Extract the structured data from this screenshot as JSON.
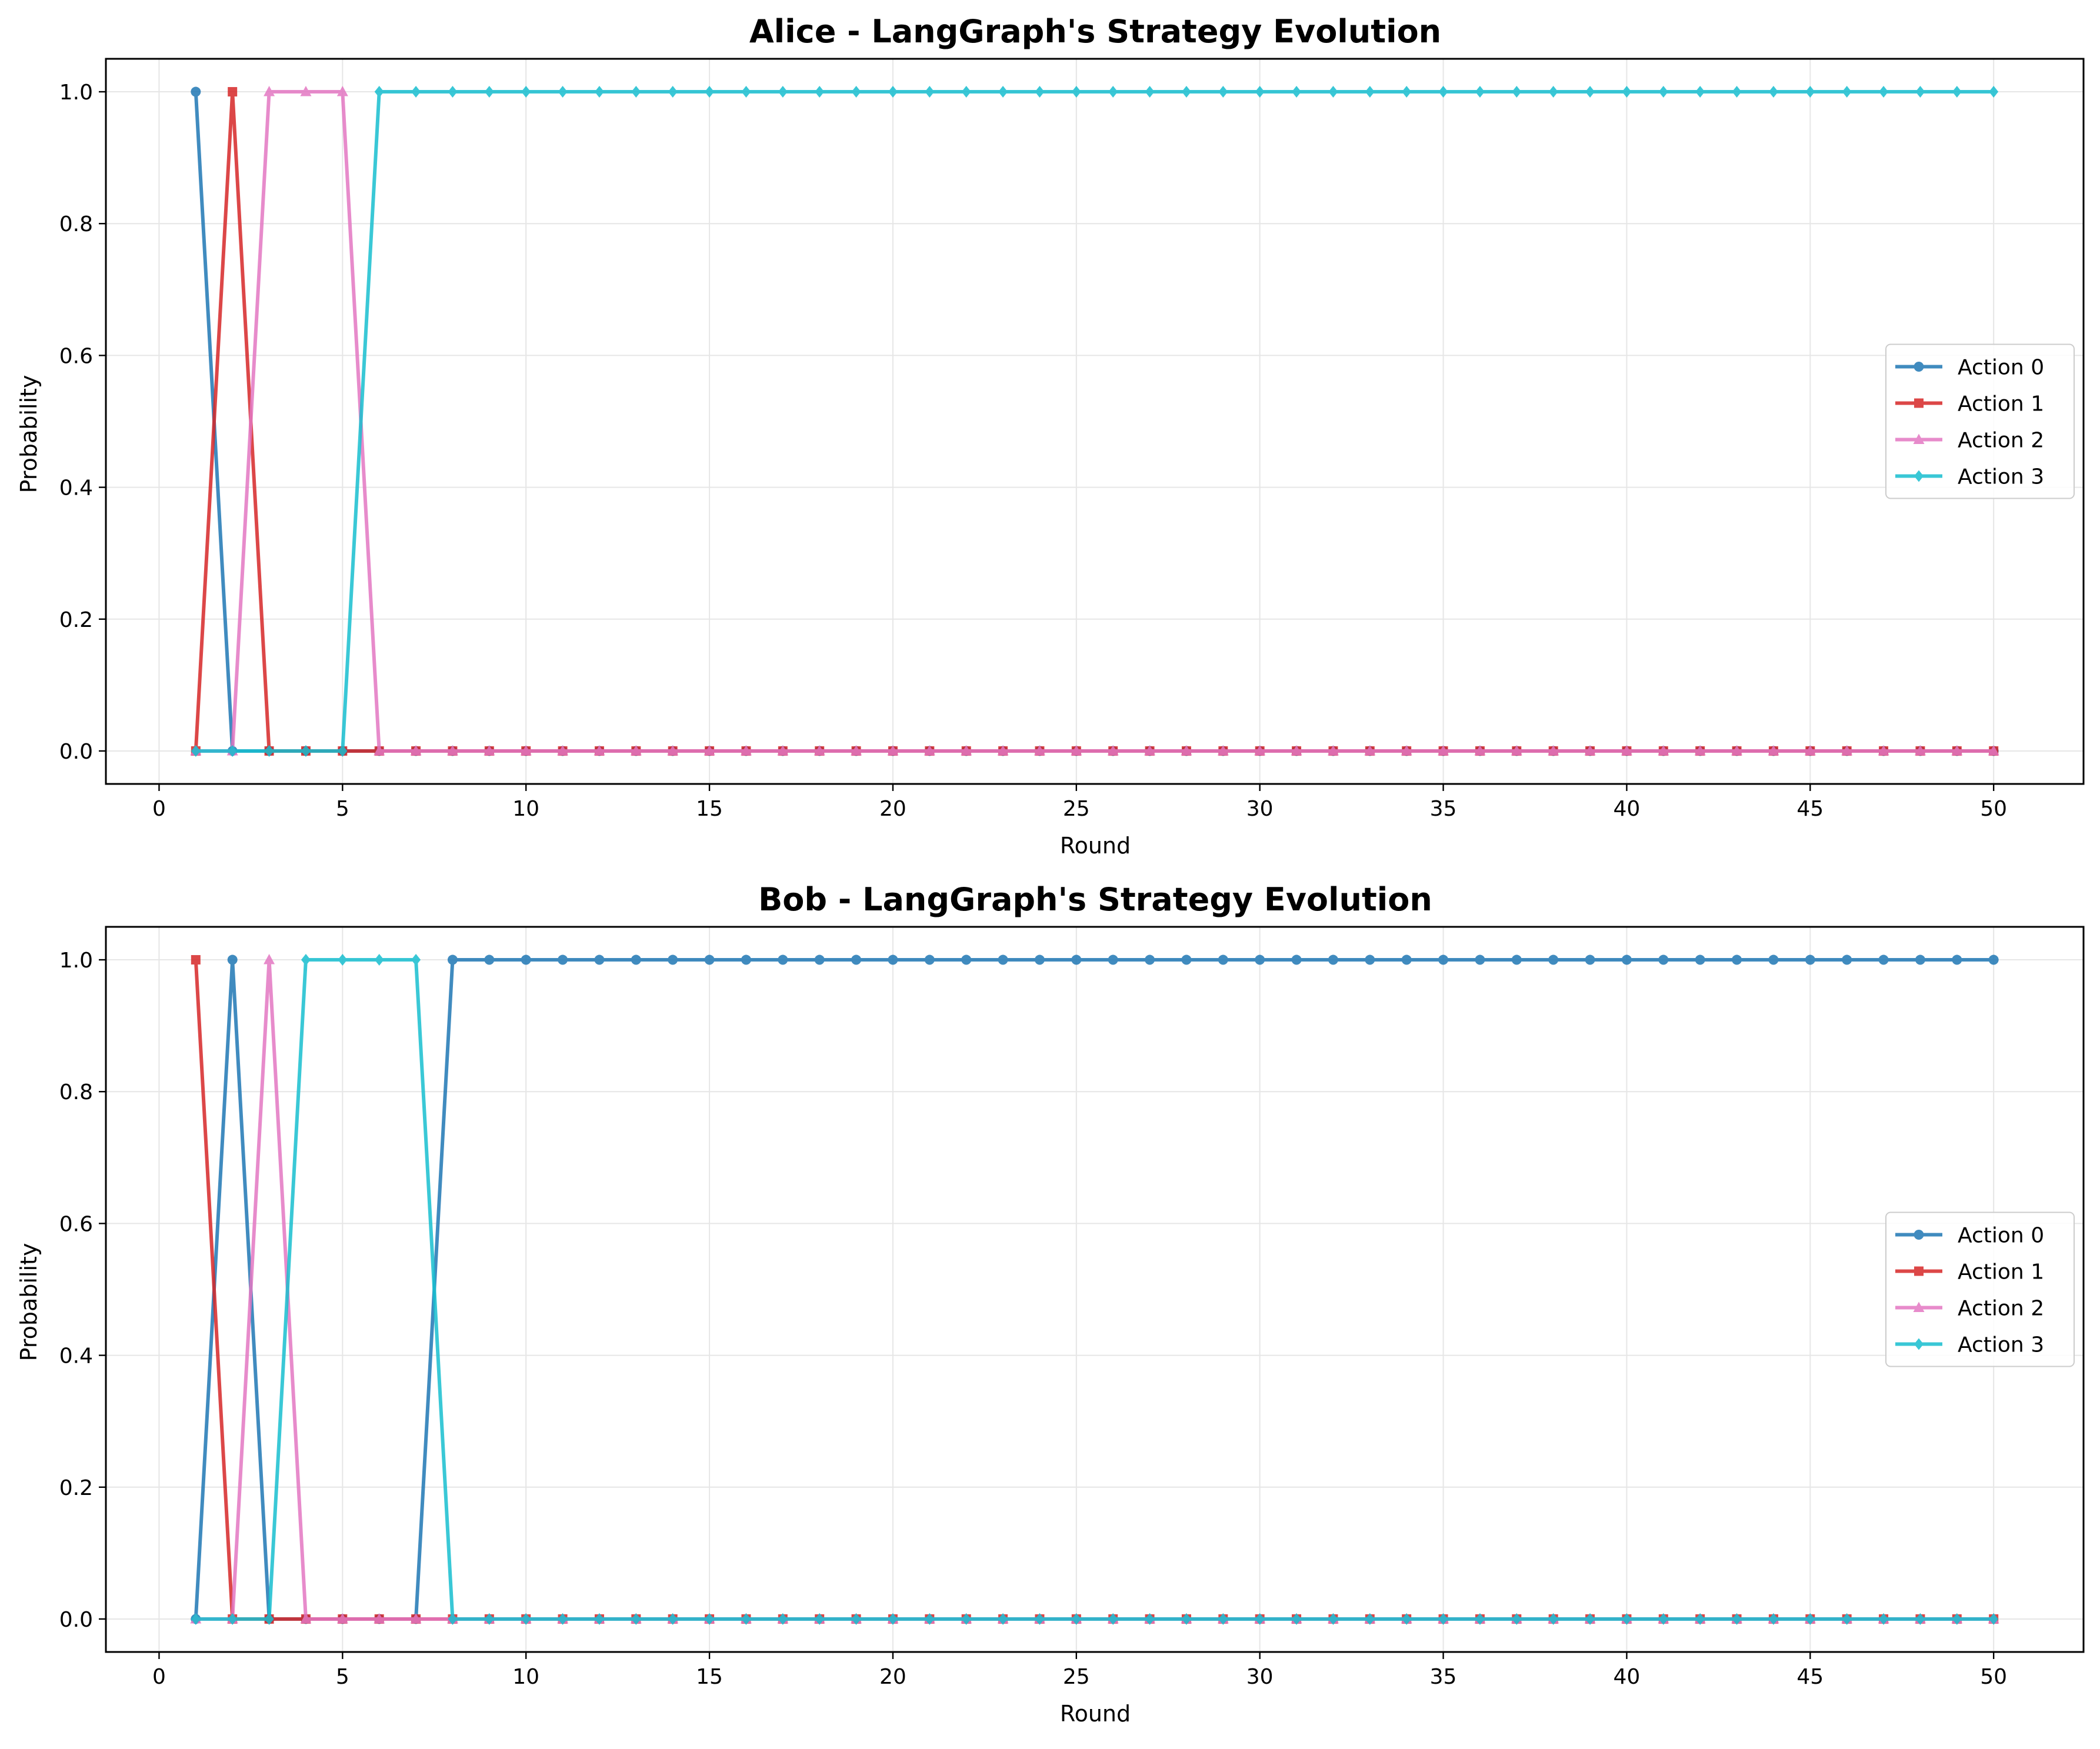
{
  "colors": {
    "action_0": "#1f77b4",
    "action_1": "#d62728",
    "action_2": "#e377c2",
    "action_3": "#17becf",
    "grid": "#e6e6e6"
  },
  "chart_data": [
    {
      "type": "line",
      "title": "Alice - LangGraph's Strategy Evolution",
      "xlabel": "Round",
      "ylabel": "Probability",
      "xlim": [
        -1.45,
        52.45
      ],
      "ylim": [
        -0.05,
        1.05
      ],
      "xticks": [
        0,
        5,
        10,
        15,
        20,
        25,
        30,
        35,
        40,
        45,
        50
      ],
      "xtick_labels": [
        "0",
        "5",
        "10",
        "15",
        "20",
        "25",
        "30",
        "35",
        "40",
        "45",
        "50"
      ],
      "yticks": [
        0.0,
        0.2,
        0.4,
        0.6,
        0.8,
        1.0
      ],
      "ytick_labels": [
        "0.0",
        "0.2",
        "0.4",
        "0.6",
        "0.8",
        "1.0"
      ],
      "grid": true,
      "legend_position": "center-right",
      "x_start": 1,
      "series": [
        {
          "name": "Action 0",
          "color": "#1f77b4",
          "marker": "circle",
          "values": [
            1,
            0,
            0,
            0,
            0,
            0,
            0,
            0,
            0,
            0,
            0,
            0,
            0,
            0,
            0,
            0,
            0,
            0,
            0,
            0,
            0,
            0,
            0,
            0,
            0,
            0,
            0,
            0,
            0,
            0,
            0,
            0,
            0,
            0,
            0,
            0,
            0,
            0,
            0,
            0,
            0,
            0,
            0,
            0,
            0,
            0,
            0,
            0,
            0,
            0
          ]
        },
        {
          "name": "Action 1",
          "color": "#d62728",
          "marker": "square",
          "values": [
            0,
            1,
            0,
            0,
            0,
            0,
            0,
            0,
            0,
            0,
            0,
            0,
            0,
            0,
            0,
            0,
            0,
            0,
            0,
            0,
            0,
            0,
            0,
            0,
            0,
            0,
            0,
            0,
            0,
            0,
            0,
            0,
            0,
            0,
            0,
            0,
            0,
            0,
            0,
            0,
            0,
            0,
            0,
            0,
            0,
            0,
            0,
            0,
            0,
            0
          ]
        },
        {
          "name": "Action 2",
          "color": "#e377c2",
          "marker": "triangle",
          "values": [
            0,
            0,
            1,
            1,
            1,
            0,
            0,
            0,
            0,
            0,
            0,
            0,
            0,
            0,
            0,
            0,
            0,
            0,
            0,
            0,
            0,
            0,
            0,
            0,
            0,
            0,
            0,
            0,
            0,
            0,
            0,
            0,
            0,
            0,
            0,
            0,
            0,
            0,
            0,
            0,
            0,
            0,
            0,
            0,
            0,
            0,
            0,
            0,
            0,
            0
          ]
        },
        {
          "name": "Action 3",
          "color": "#17becf",
          "marker": "diamond",
          "values": [
            0,
            0,
            0,
            0,
            0,
            1,
            1,
            1,
            1,
            1,
            1,
            1,
            1,
            1,
            1,
            1,
            1,
            1,
            1,
            1,
            1,
            1,
            1,
            1,
            1,
            1,
            1,
            1,
            1,
            1,
            1,
            1,
            1,
            1,
            1,
            1,
            1,
            1,
            1,
            1,
            1,
            1,
            1,
            1,
            1,
            1,
            1,
            1,
            1,
            1
          ]
        }
      ]
    },
    {
      "type": "line",
      "title": "Bob - LangGraph's Strategy Evolution",
      "xlabel": "Round",
      "ylabel": "Probability",
      "xlim": [
        -1.45,
        52.45
      ],
      "ylim": [
        -0.05,
        1.05
      ],
      "xticks": [
        0,
        5,
        10,
        15,
        20,
        25,
        30,
        35,
        40,
        45,
        50
      ],
      "xtick_labels": [
        "0",
        "5",
        "10",
        "15",
        "20",
        "25",
        "30",
        "35",
        "40",
        "45",
        "50"
      ],
      "yticks": [
        0.0,
        0.2,
        0.4,
        0.6,
        0.8,
        1.0
      ],
      "ytick_labels": [
        "0.0",
        "0.2",
        "0.4",
        "0.6",
        "0.8",
        "1.0"
      ],
      "grid": true,
      "legend_position": "center-right",
      "x_start": 1,
      "series": [
        {
          "name": "Action 0",
          "color": "#1f77b4",
          "marker": "circle",
          "values": [
            0,
            1,
            0,
            0,
            0,
            0,
            0,
            1,
            1,
            1,
            1,
            1,
            1,
            1,
            1,
            1,
            1,
            1,
            1,
            1,
            1,
            1,
            1,
            1,
            1,
            1,
            1,
            1,
            1,
            1,
            1,
            1,
            1,
            1,
            1,
            1,
            1,
            1,
            1,
            1,
            1,
            1,
            1,
            1,
            1,
            1,
            1,
            1,
            1,
            1
          ]
        },
        {
          "name": "Action 1",
          "color": "#d62728",
          "marker": "square",
          "values": [
            1,
            0,
            0,
            0,
            0,
            0,
            0,
            0,
            0,
            0,
            0,
            0,
            0,
            0,
            0,
            0,
            0,
            0,
            0,
            0,
            0,
            0,
            0,
            0,
            0,
            0,
            0,
            0,
            0,
            0,
            0,
            0,
            0,
            0,
            0,
            0,
            0,
            0,
            0,
            0,
            0,
            0,
            0,
            0,
            0,
            0,
            0,
            0,
            0,
            0
          ]
        },
        {
          "name": "Action 2",
          "color": "#e377c2",
          "marker": "triangle",
          "values": [
            0,
            0,
            1,
            0,
            0,
            0,
            0,
            0,
            0,
            0,
            0,
            0,
            0,
            0,
            0,
            0,
            0,
            0,
            0,
            0,
            0,
            0,
            0,
            0,
            0,
            0,
            0,
            0,
            0,
            0,
            0,
            0,
            0,
            0,
            0,
            0,
            0,
            0,
            0,
            0,
            0,
            0,
            0,
            0,
            0,
            0,
            0,
            0,
            0,
            0
          ]
        },
        {
          "name": "Action 3",
          "color": "#17becf",
          "marker": "diamond",
          "values": [
            0,
            0,
            0,
            1,
            1,
            1,
            1,
            0,
            0,
            0,
            0,
            0,
            0,
            0,
            0,
            0,
            0,
            0,
            0,
            0,
            0,
            0,
            0,
            0,
            0,
            0,
            0,
            0,
            0,
            0,
            0,
            0,
            0,
            0,
            0,
            0,
            0,
            0,
            0,
            0,
            0,
            0,
            0,
            0,
            0,
            0,
            0,
            0,
            0,
            0
          ]
        }
      ]
    }
  ]
}
